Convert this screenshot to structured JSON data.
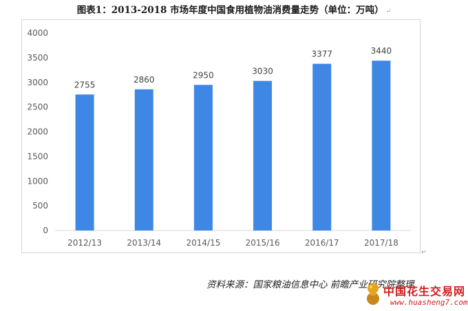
{
  "title": "图表1：2013-2018 市场年度中国食用植物油消费量走势（单位：万吨）",
  "paragraph_mark": "↵",
  "source": "资料来源：国家粮油信息中心  前瞻产业研究院整理",
  "watermark": {
    "name": "中国花生交易网",
    "url": "www.huasheng7.com"
  },
  "colors": {
    "bar": "#3f87e4",
    "axis": "#d9d9d9",
    "text": "#595959"
  },
  "chart_data": {
    "type": "bar",
    "title": "",
    "xlabel": "",
    "ylabel": "",
    "categories": [
      "2012/13",
      "2013/14",
      "2014/15",
      "2015/16",
      "2016/17",
      "2017/18"
    ],
    "values": [
      2755,
      2860,
      2950,
      3030,
      3377,
      3440
    ],
    "ylim": [
      0,
      4000
    ],
    "yticks": [
      0,
      500,
      1000,
      1500,
      2000,
      2500,
      3000,
      3500,
      4000
    ],
    "grid": false,
    "data_labels": true,
    "legend": "none"
  }
}
